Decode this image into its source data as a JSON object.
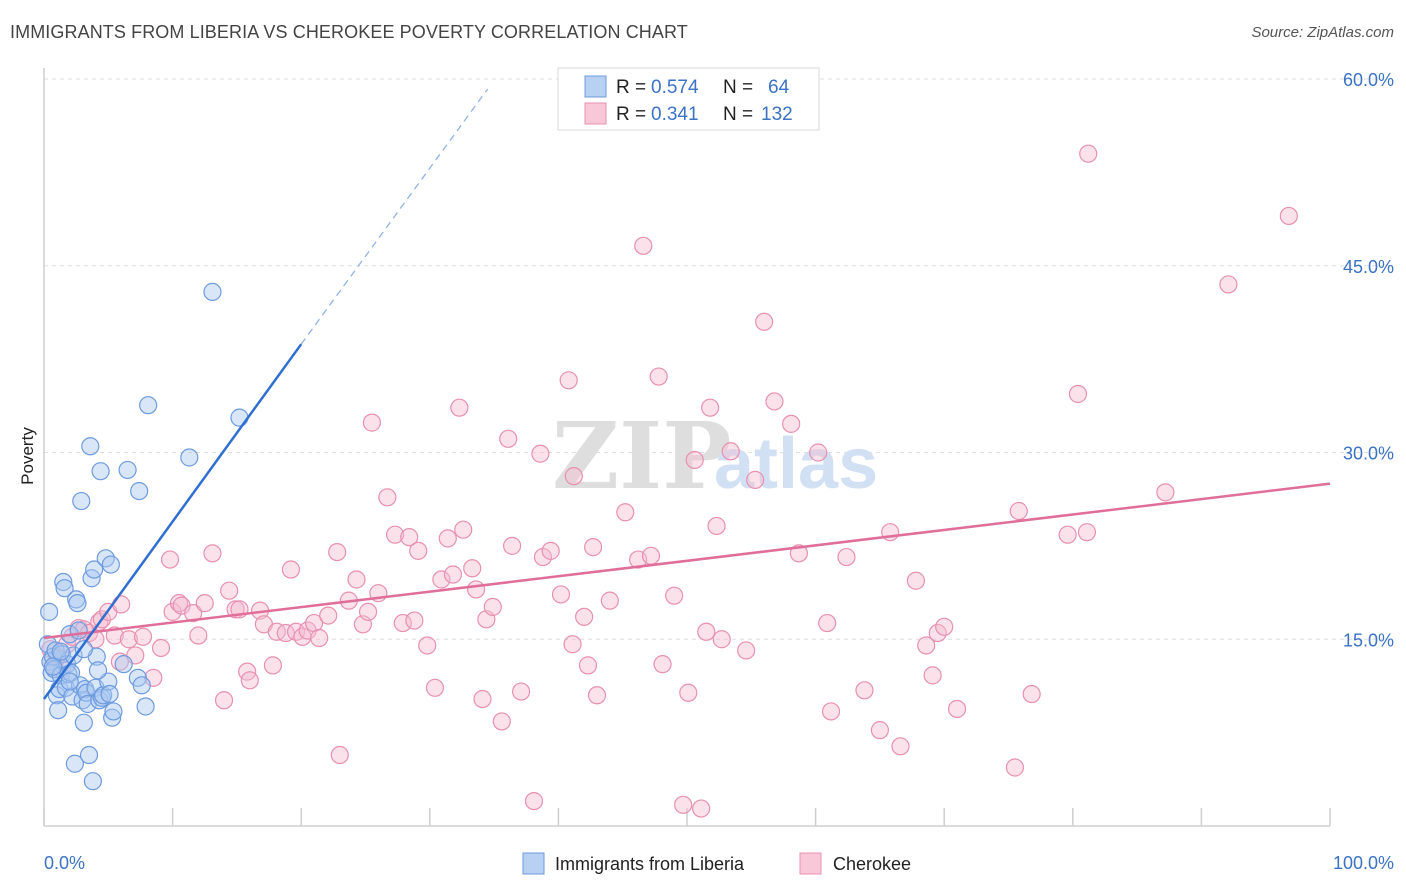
{
  "title": "IMMIGRANTS FROM LIBERIA VS CHEROKEE POVERTY CORRELATION CHART",
  "source": "Source: ZipAtlas.com",
  "watermark": {
    "zip": "ZIP",
    "atlas": "atlas"
  },
  "colors": {
    "blue_fill": "#a9c8f0",
    "blue_stroke": "#6d9be0",
    "blue_line": "#2f6fd1",
    "pink_fill": "#f5bcd0",
    "pink_stroke": "#e890b0",
    "pink_line": "#e06e9a",
    "axis_text": "#3a72c4",
    "grid": "#dddddd"
  },
  "legend": {
    "rows": [
      {
        "r_label": "R =",
        "r_value": "0.574",
        "n_label": "N =",
        "n_value": "64",
        "color": "blue"
      },
      {
        "r_label": "R =",
        "r_value": "0.341",
        "n_label": "N =",
        "n_value": "132",
        "color": "pink"
      }
    ]
  },
  "chart_data": {
    "type": "scatter",
    "xlabel": "",
    "ylabel": "Poverty",
    "xlim": [
      0,
      100
    ],
    "ylim": [
      0,
      60
    ],
    "x_tick_labels": [
      "0.0%",
      "100.0%"
    ],
    "y_ticks": [
      15,
      30,
      45,
      60
    ],
    "y_tick_labels": [
      "15.0%",
      "30.0%",
      "45.0%",
      "60.0%"
    ],
    "grid": "horizontal dashed",
    "legend_placement": "top-center",
    "series": [
      {
        "name": "Immigrants from Liberia",
        "color": "blue",
        "trend": {
          "x": [
            0,
            20
          ],
          "y": [
            10.2,
            38.7
          ],
          "extension_to": [
            34.5,
            59.2
          ]
        },
        "points": [
          [
            0.3,
            14.6
          ],
          [
            0.4,
            17.2
          ],
          [
            0.5,
            13.2
          ],
          [
            0.6,
            12.3
          ],
          [
            0.7,
            13.6
          ],
          [
            0.8,
            12.6
          ],
          [
            0.9,
            14.1
          ],
          [
            1.0,
            10.5
          ],
          [
            1.1,
            9.3
          ],
          [
            1.2,
            11.0
          ],
          [
            1.3,
            12.1
          ],
          [
            1.4,
            13.8
          ],
          [
            1.5,
            19.6
          ],
          [
            1.6,
            19.1
          ],
          [
            1.7,
            11.1
          ],
          [
            1.8,
            13.0
          ],
          [
            1.9,
            12.2
          ],
          [
            2.0,
            15.4
          ],
          [
            2.1,
            12.3
          ],
          [
            2.2,
            10.4
          ],
          [
            2.3,
            13.7
          ],
          [
            2.4,
            5.0
          ],
          [
            2.5,
            18.2
          ],
          [
            2.6,
            17.9
          ],
          [
            2.7,
            15.7
          ],
          [
            2.8,
            11.3
          ],
          [
            2.9,
            26.1
          ],
          [
            3.0,
            10.1
          ],
          [
            3.1,
            8.3
          ],
          [
            3.2,
            11.0
          ],
          [
            3.3,
            10.7
          ],
          [
            3.4,
            9.8
          ],
          [
            3.5,
            5.7
          ],
          [
            3.6,
            30.5
          ],
          [
            3.7,
            19.9
          ],
          [
            3.8,
            3.6
          ],
          [
            3.9,
            20.6
          ],
          [
            4.0,
            11.1
          ],
          [
            4.1,
            13.6
          ],
          [
            4.3,
            10.1
          ],
          [
            4.4,
            28.5
          ],
          [
            4.5,
            10.3
          ],
          [
            4.6,
            10.5
          ],
          [
            4.8,
            21.5
          ],
          [
            5.0,
            11.6
          ],
          [
            5.1,
            10.6
          ],
          [
            5.2,
            21.0
          ],
          [
            5.3,
            8.7
          ],
          [
            5.4,
            9.2
          ],
          [
            6.2,
            13.0
          ],
          [
            6.5,
            28.6
          ],
          [
            7.3,
            11.9
          ],
          [
            7.4,
            26.9
          ],
          [
            7.6,
            11.3
          ],
          [
            7.9,
            9.6
          ],
          [
            8.1,
            33.8
          ],
          [
            11.3,
            29.6
          ],
          [
            13.1,
            42.9
          ],
          [
            15.2,
            32.8
          ],
          [
            0.7,
            12.8
          ],
          [
            1.3,
            14.0
          ],
          [
            2.0,
            11.6
          ],
          [
            3.1,
            14.2
          ],
          [
            4.2,
            12.5
          ]
        ]
      },
      {
        "name": "Cherokee",
        "color": "pink",
        "trend": {
          "x": [
            0,
            100
          ],
          "y": [
            15.1,
            27.5
          ]
        },
        "points": [
          [
            0.5,
            14.2
          ],
          [
            0.8,
            12.9
          ],
          [
            1.0,
            13.5
          ],
          [
            1.4,
            12.6
          ],
          [
            1.8,
            14.6
          ],
          [
            2.2,
            15.2
          ],
          [
            2.7,
            15.9
          ],
          [
            3.1,
            15.8
          ],
          [
            3.5,
            15.5
          ],
          [
            4.0,
            15.0
          ],
          [
            4.3,
            16.4
          ],
          [
            4.5,
            16.6
          ],
          [
            5.0,
            17.2
          ],
          [
            5.5,
            15.3
          ],
          [
            5.9,
            13.2
          ],
          [
            6.0,
            17.8
          ],
          [
            6.6,
            15.0
          ],
          [
            7.1,
            13.7
          ],
          [
            7.7,
            15.2
          ],
          [
            8.5,
            11.9
          ],
          [
            9.1,
            14.3
          ],
          [
            9.8,
            21.4
          ],
          [
            10.0,
            17.2
          ],
          [
            10.5,
            17.9
          ],
          [
            10.7,
            17.7
          ],
          [
            11.6,
            17.1
          ],
          [
            12.0,
            15.3
          ],
          [
            12.5,
            17.9
          ],
          [
            13.1,
            21.9
          ],
          [
            14.0,
            10.1
          ],
          [
            14.4,
            18.9
          ],
          [
            14.9,
            17.4
          ],
          [
            15.2,
            17.4
          ],
          [
            15.8,
            12.4
          ],
          [
            16.0,
            11.7
          ],
          [
            16.8,
            17.3
          ],
          [
            17.1,
            16.2
          ],
          [
            17.8,
            12.9
          ],
          [
            18.1,
            15.6
          ],
          [
            18.8,
            15.5
          ],
          [
            19.2,
            20.6
          ],
          [
            19.6,
            15.6
          ],
          [
            20.1,
            15.2
          ],
          [
            20.5,
            15.7
          ],
          [
            21.0,
            16.3
          ],
          [
            21.4,
            15.1
          ],
          [
            22.1,
            16.9
          ],
          [
            22.8,
            22.0
          ],
          [
            23.0,
            5.7
          ],
          [
            23.7,
            18.1
          ],
          [
            24.3,
            19.8
          ],
          [
            24.8,
            16.2
          ],
          [
            25.2,
            17.2
          ],
          [
            25.5,
            32.4
          ],
          [
            26.0,
            18.7
          ],
          [
            26.7,
            26.4
          ],
          [
            27.3,
            23.4
          ],
          [
            27.9,
            16.3
          ],
          [
            28.4,
            23.2
          ],
          [
            28.8,
            16.5
          ],
          [
            29.1,
            22.1
          ],
          [
            29.8,
            14.5
          ],
          [
            30.4,
            11.1
          ],
          [
            30.9,
            19.8
          ],
          [
            31.4,
            23.1
          ],
          [
            31.8,
            20.2
          ],
          [
            32.3,
            33.6
          ],
          [
            32.6,
            23.8
          ],
          [
            33.3,
            20.7
          ],
          [
            33.6,
            19.0
          ],
          [
            34.1,
            10.2
          ],
          [
            34.4,
            16.6
          ],
          [
            34.9,
            17.6
          ],
          [
            35.6,
            8.4
          ],
          [
            36.1,
            31.1
          ],
          [
            36.4,
            22.5
          ],
          [
            37.1,
            10.8
          ],
          [
            38.1,
            2.0
          ],
          [
            38.6,
            29.9
          ],
          [
            38.8,
            21.6
          ],
          [
            39.4,
            22.1
          ],
          [
            40.2,
            18.6
          ],
          [
            40.8,
            35.8
          ],
          [
            41.2,
            28.1
          ],
          [
            42.0,
            16.8
          ],
          [
            42.3,
            12.9
          ],
          [
            42.7,
            22.4
          ],
          [
            43.0,
            10.5
          ],
          [
            44.0,
            18.1
          ],
          [
            45.2,
            25.2
          ],
          [
            46.2,
            21.4
          ],
          [
            46.6,
            46.6
          ],
          [
            47.2,
            21.7
          ],
          [
            47.8,
            36.1
          ],
          [
            48.1,
            13.0
          ],
          [
            49.0,
            18.5
          ],
          [
            49.7,
            1.7
          ],
          [
            50.1,
            10.7
          ],
          [
            50.6,
            29.4
          ],
          [
            51.1,
            1.4
          ],
          [
            51.5,
            15.6
          ],
          [
            51.8,
            33.6
          ],
          [
            52.3,
            24.1
          ],
          [
            52.7,
            15.0
          ],
          [
            53.4,
            30.1
          ],
          [
            54.6,
            14.1
          ],
          [
            55.3,
            27.8
          ],
          [
            56.0,
            40.5
          ],
          [
            56.8,
            34.1
          ],
          [
            58.1,
            32.3
          ],
          [
            58.7,
            21.9
          ],
          [
            60.2,
            30.0
          ],
          [
            60.9,
            16.3
          ],
          [
            61.2,
            9.2
          ],
          [
            62.4,
            21.6
          ],
          [
            63.8,
            10.9
          ],
          [
            65.0,
            7.7
          ],
          [
            65.8,
            23.6
          ],
          [
            66.6,
            6.4
          ],
          [
            67.8,
            19.7
          ],
          [
            68.6,
            14.5
          ],
          [
            69.1,
            12.1
          ],
          [
            69.5,
            15.5
          ],
          [
            70.0,
            16.0
          ],
          [
            71.0,
            9.4
          ],
          [
            75.5,
            4.7
          ],
          [
            75.8,
            25.3
          ],
          [
            76.8,
            10.6
          ],
          [
            79.6,
            23.4
          ],
          [
            80.4,
            34.7
          ],
          [
            81.1,
            23.6
          ],
          [
            81.2,
            54.0
          ],
          [
            87.2,
            26.8
          ],
          [
            92.1,
            43.5
          ],
          [
            96.8,
            49.0
          ],
          [
            41.1,
            14.6
          ]
        ]
      }
    ]
  },
  "bottom_legend": [
    {
      "label": "Immigrants from Liberia",
      "color": "blue"
    },
    {
      "label": "Cherokee",
      "color": "pink"
    }
  ]
}
